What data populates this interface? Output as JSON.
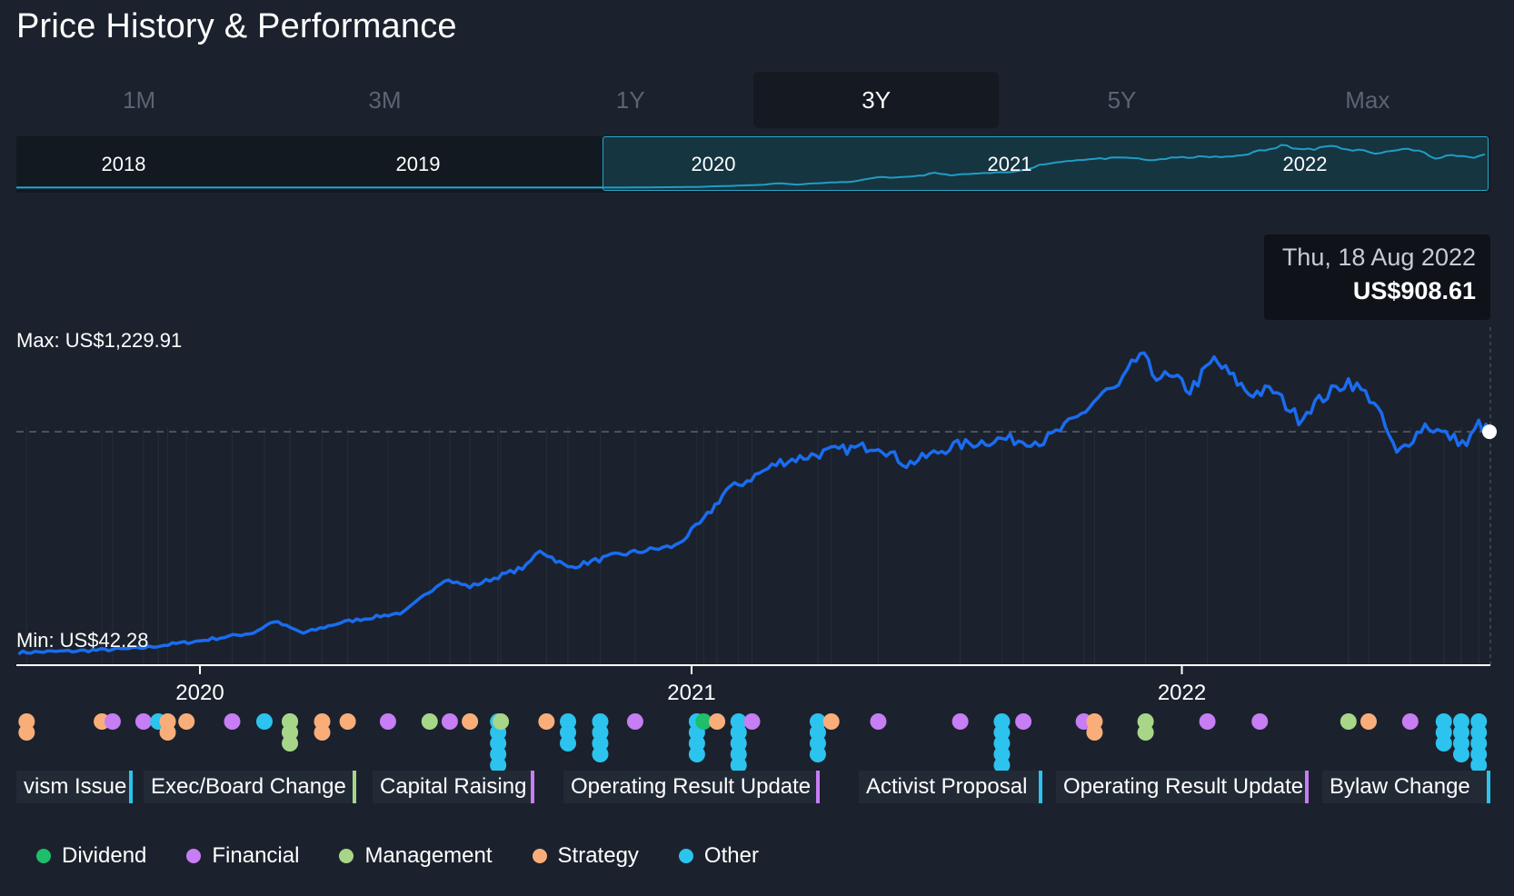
{
  "title": "Price History & Performance",
  "periods": [
    {
      "label": "1M",
      "active": false
    },
    {
      "label": "3M",
      "active": false
    },
    {
      "label": "1Y",
      "active": false
    },
    {
      "label": "3Y",
      "active": true
    },
    {
      "label": "5Y",
      "active": false
    },
    {
      "label": "Max",
      "active": false
    }
  ],
  "navigator_years": [
    "2018",
    "2019",
    "2020",
    "2021",
    "2022"
  ],
  "tooltip": {
    "date": "Thu, 18 Aug 2022",
    "price": "US$908.61"
  },
  "max_label": "Max: US$1,229.91",
  "min_label": "Min: US$42.28",
  "colors": {
    "line": "#1a6cf0",
    "nav_line": "#22a9d6",
    "dividend": "#1fbe6a",
    "financial": "#c77df3",
    "management": "#a7d689",
    "strategy": "#f9ae7a",
    "other": "#2cc3ee"
  },
  "event_labels": [
    {
      "text": "vism Issue",
      "type": "other"
    },
    {
      "text": "Exec/Board Change",
      "type": "management"
    },
    {
      "text": "Capital Raising",
      "type": "financial"
    },
    {
      "text": "Operating Result Update",
      "type": "financial"
    },
    {
      "text": "Activist Proposal",
      "type": "other"
    },
    {
      "text": "Operating Result Update",
      "type": "financial"
    },
    {
      "text": "Bylaw Change",
      "type": "other"
    }
  ],
  "legend": [
    {
      "label": "Dividend",
      "type": "dividend"
    },
    {
      "label": "Financial",
      "type": "financial"
    },
    {
      "label": "Management",
      "type": "management"
    },
    {
      "label": "Strategy",
      "type": "strategy"
    },
    {
      "label": "Other",
      "type": "other"
    }
  ],
  "chart_data": {
    "type": "line",
    "xlabel": "",
    "ylabel": "",
    "x_ticks": [
      "2020",
      "2021",
      "2022"
    ],
    "currency": "US$",
    "y_min": 42.28,
    "y_max": 1229.91,
    "highlight": {
      "date": "2022-08-18",
      "value": 908.61
    },
    "x": [
      "2019-08-19",
      "2019-10-01",
      "2019-11-15",
      "2020-01-01",
      "2020-02-10",
      "2020-02-25",
      "2020-03-18",
      "2020-04-15",
      "2020-06-01",
      "2020-07-01",
      "2020-07-20",
      "2020-08-31",
      "2020-09-10",
      "2020-10-01",
      "2020-11-05",
      "2020-11-25",
      "2020-12-20",
      "2021-01-10",
      "2021-01-27",
      "2021-02-05",
      "2021-03-08",
      "2021-04-15",
      "2021-05-20",
      "2021-06-10",
      "2021-07-15",
      "2021-08-20",
      "2021-09-20",
      "2021-10-15",
      "2021-11-03",
      "2021-11-15",
      "2021-12-01",
      "2021-12-10",
      "2022-01-01",
      "2022-01-07",
      "2022-01-25",
      "2022-02-20",
      "2022-03-10",
      "2022-03-29",
      "2022-04-10",
      "2022-05-05",
      "2022-05-24",
      "2022-06-10",
      "2022-07-01",
      "2022-08-01",
      "2022-08-10",
      "2022-08-18"
    ],
    "y": [
      42,
      48,
      58,
      88,
      120,
      165,
      118,
      160,
      200,
      330,
      300,
      380,
      445,
      375,
      423,
      440,
      460,
      560,
      680,
      700,
      790,
      832,
      855,
      780,
      853,
      880,
      870,
      960,
      1060,
      1080,
      1216,
      1140,
      1100,
      1070,
      1190,
      1060,
      1070,
      960,
      1020,
      1110,
      1030,
      820,
      935,
      858,
      940,
      908.61
    ],
    "events": [
      {
        "date": "2019-08-25",
        "type": "strategy",
        "count": 2
      },
      {
        "date": "2019-10-20",
        "type": "strategy",
        "count": 1
      },
      {
        "date": "2019-10-28",
        "type": "financial",
        "count": 1
      },
      {
        "date": "2019-11-20",
        "type": "financial",
        "count": 1
      },
      {
        "date": "2019-12-01",
        "type": "other",
        "count": 1
      },
      {
        "date": "2019-12-08",
        "type": "strategy",
        "count": 2
      },
      {
        "date": "2019-12-22",
        "type": "strategy",
        "count": 1
      },
      {
        "date": "2020-01-25",
        "type": "financial",
        "count": 1
      },
      {
        "date": "2020-02-18",
        "type": "other",
        "count": 1
      },
      {
        "date": "2020-03-08",
        "type": "financial",
        "count": 2
      },
      {
        "date": "2020-03-08",
        "type": "management",
        "count": 3
      },
      {
        "date": "2020-04-01",
        "type": "strategy",
        "count": 2
      },
      {
        "date": "2020-04-20",
        "type": "strategy",
        "count": 1
      },
      {
        "date": "2020-05-20",
        "type": "financial",
        "count": 1
      },
      {
        "date": "2020-06-20",
        "type": "management",
        "count": 1
      },
      {
        "date": "2020-07-05",
        "type": "financial",
        "count": 1
      },
      {
        "date": "2020-07-20",
        "type": "strategy",
        "count": 1
      },
      {
        "date": "2020-08-10",
        "type": "other",
        "count": 7
      },
      {
        "date": "2020-08-12",
        "type": "management",
        "count": 1
      },
      {
        "date": "2020-09-15",
        "type": "strategy",
        "count": 1
      },
      {
        "date": "2020-10-01",
        "type": "other",
        "count": 3
      },
      {
        "date": "2020-10-25",
        "type": "other",
        "count": 4
      },
      {
        "date": "2020-11-20",
        "type": "financial",
        "count": 1
      },
      {
        "date": "2021-01-05",
        "type": "other",
        "count": 4
      },
      {
        "date": "2021-01-10",
        "type": "dividend",
        "count": 1
      },
      {
        "date": "2021-01-20",
        "type": "strategy",
        "count": 1
      },
      {
        "date": "2021-02-05",
        "type": "other",
        "count": 5
      },
      {
        "date": "2021-02-15",
        "type": "financial",
        "count": 1
      },
      {
        "date": "2021-04-05",
        "type": "other",
        "count": 4
      },
      {
        "date": "2021-04-15",
        "type": "strategy",
        "count": 1
      },
      {
        "date": "2021-05-20",
        "type": "financial",
        "count": 1
      },
      {
        "date": "2021-07-20",
        "type": "financial",
        "count": 1
      },
      {
        "date": "2021-08-20",
        "type": "other",
        "count": 6
      },
      {
        "date": "2021-09-05",
        "type": "financial",
        "count": 1
      },
      {
        "date": "2021-10-20",
        "type": "financial",
        "count": 1
      },
      {
        "date": "2021-10-28",
        "type": "strategy",
        "count": 2
      },
      {
        "date": "2021-12-05",
        "type": "management",
        "count": 2
      },
      {
        "date": "2022-01-20",
        "type": "financial",
        "count": 1
      },
      {
        "date": "2022-02-28",
        "type": "financial",
        "count": 1
      },
      {
        "date": "2022-05-05",
        "type": "management",
        "count": 1
      },
      {
        "date": "2022-05-20",
        "type": "strategy",
        "count": 1
      },
      {
        "date": "2022-06-20",
        "type": "financial",
        "count": 1
      },
      {
        "date": "2022-07-15",
        "type": "other",
        "count": 3
      },
      {
        "date": "2022-07-28",
        "type": "other",
        "count": 4
      },
      {
        "date": "2022-08-10",
        "type": "other",
        "count": 5
      }
    ]
  }
}
